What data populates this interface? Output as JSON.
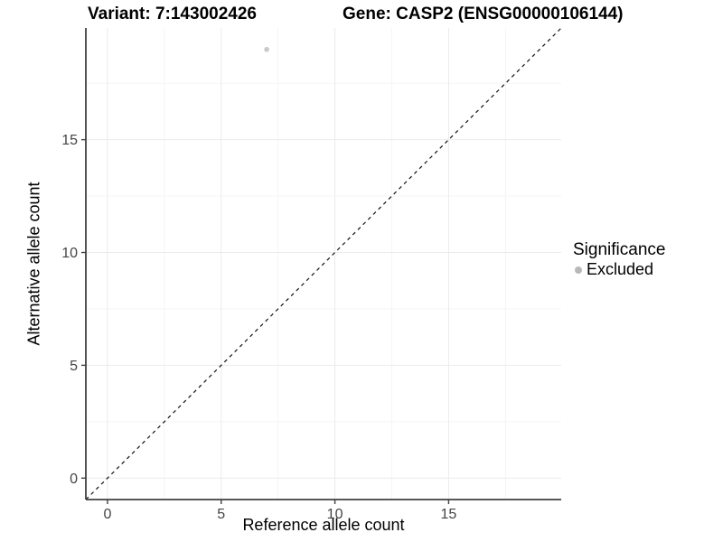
{
  "chart_data": {
    "type": "scatter",
    "title_parts": [
      "Variant: 7:143002426",
      "Gene: CASP2 (ENSG00000106144)"
    ],
    "xlabel": "Reference allele count",
    "ylabel": "Alternative allele count",
    "xlim": [
      -0.95,
      19.95
    ],
    "ylim": [
      -0.95,
      19.95
    ],
    "x_ticks": [
      0,
      5,
      10,
      15
    ],
    "y_ticks": [
      0,
      5,
      10,
      15
    ],
    "x_minor_ticks": [
      2.5,
      7.5,
      12.5,
      17.5
    ],
    "y_minor_ticks": [
      2.5,
      7.5,
      12.5,
      17.5
    ],
    "grid": "major-and-minor",
    "reference_line": {
      "kind": "identity y=x",
      "style": "dashed",
      "color": "#111111"
    },
    "series": [
      {
        "name": "Excluded",
        "color": "#c9c9c9",
        "points": [
          {
            "x": 7,
            "y": 19
          }
        ]
      }
    ],
    "legend": {
      "title": "Significance",
      "position": "right",
      "items": [
        {
          "label": "Excluded",
          "color": "#b8b8b8",
          "marker": "circle"
        }
      ]
    }
  },
  "colors": {
    "background": "#ffffff",
    "grid_major": "#ebebeb",
    "grid_minor": "#f5f5f5",
    "axis_line": "#404040",
    "tick_text": "#444444",
    "title_text": "#000000"
  }
}
